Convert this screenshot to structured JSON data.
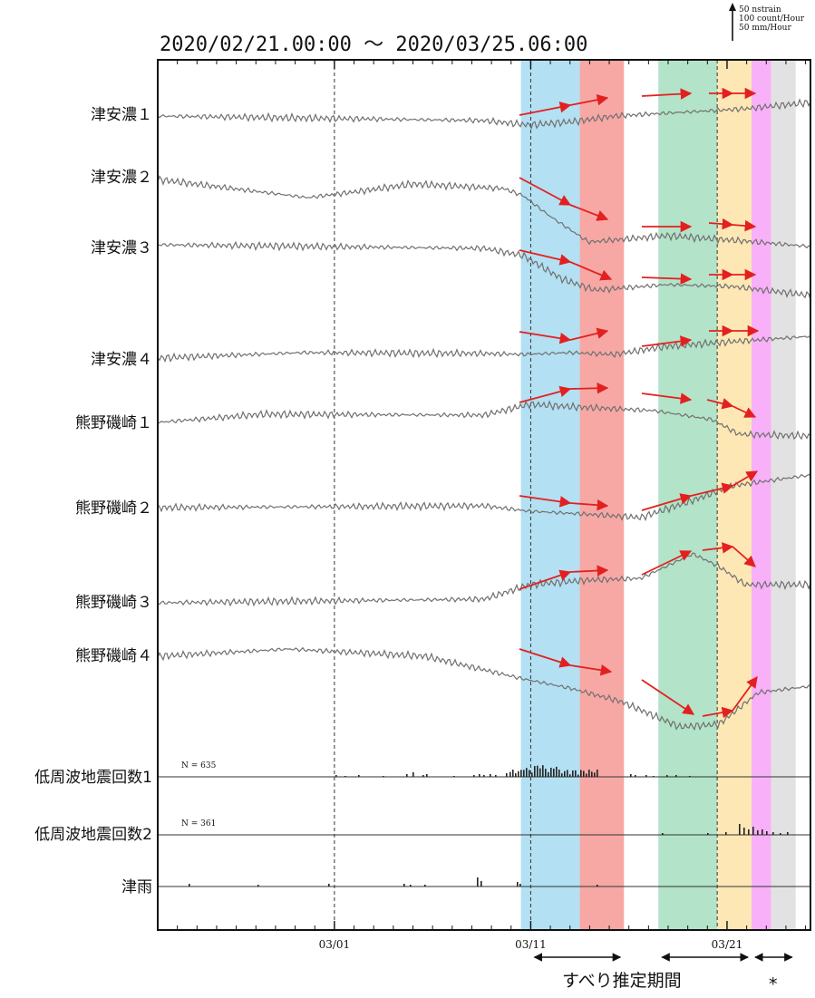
{
  "chart_data": {
    "type": "line",
    "title": "2020/02/21.00:00 〜 2020/03/25.06:00",
    "scale_legend": [
      "50 nstrain",
      "100 count/Hour",
      "50 mm/Hour"
    ],
    "x_axis": {
      "start": "2020-02-21T00:00",
      "end": "2020-03-25T06:00",
      "tick_labels": [
        {
          "date": "2020-03-01T00:00",
          "label": "03/01"
        },
        {
          "date": "2020-03-11T00:00",
          "label": "03/11"
        },
        {
          "date": "2020-03-21T00:00",
          "label": "03/21"
        }
      ]
    },
    "dashed_markers": [
      "2020-03-01T00:00",
      "2020-03-11T00:00",
      "2020-03-20T12:00"
    ],
    "shaded_periods": [
      {
        "start": "2020-03-10T12:00",
        "end": "2020-03-13T12:00",
        "color": "#b3e0f2"
      },
      {
        "start": "2020-03-13T12:00",
        "end": "2020-03-15T18:00",
        "color": "#f7a8a4"
      },
      {
        "start": "2020-03-17T12:00",
        "end": "2020-03-20T12:00",
        "color": "#b3e3c8"
      },
      {
        "start": "2020-03-20T12:00",
        "end": "2020-03-22T06:00",
        "color": "#fde7b5"
      },
      {
        "start": "2020-03-22T06:00",
        "end": "2020-03-23T06:00",
        "color": "#f8b0f8"
      },
      {
        "start": "2020-03-23T06:00",
        "end": "2020-03-24T12:00",
        "color": "#e2e2e2"
      }
    ],
    "series": [
      {
        "name": "津安濃１",
        "kind": "strain"
      },
      {
        "name": "津安濃２",
        "kind": "strain"
      },
      {
        "name": "津安濃３",
        "kind": "strain"
      },
      {
        "name": "津安濃４",
        "kind": "strain"
      },
      {
        "name": "熊野磯崎１",
        "kind": "strain"
      },
      {
        "name": "熊野磯崎２",
        "kind": "strain"
      },
      {
        "name": "熊野磯崎３",
        "kind": "strain"
      },
      {
        "name": "熊野磯崎４",
        "kind": "strain"
      },
      {
        "name": "低周波地震回数1",
        "kind": "count",
        "n_label": "N =   635"
      },
      {
        "name": "低周波地震回数2",
        "kind": "count",
        "n_label": "N =   361"
      },
      {
        "name": "津雨",
        "kind": "rain"
      }
    ],
    "period_brackets": [
      {
        "start": "2020-03-11T00:00",
        "end": "2020-03-15T18:00"
      },
      {
        "start": "2020-03-17T12:00",
        "end": "2020-03-22T06:00"
      },
      {
        "start": "2020-03-22T06:00",
        "end": "2020-03-24T12:00"
      }
    ],
    "period_label": "すべり推定期間",
    "asterisk_label": "*"
  }
}
